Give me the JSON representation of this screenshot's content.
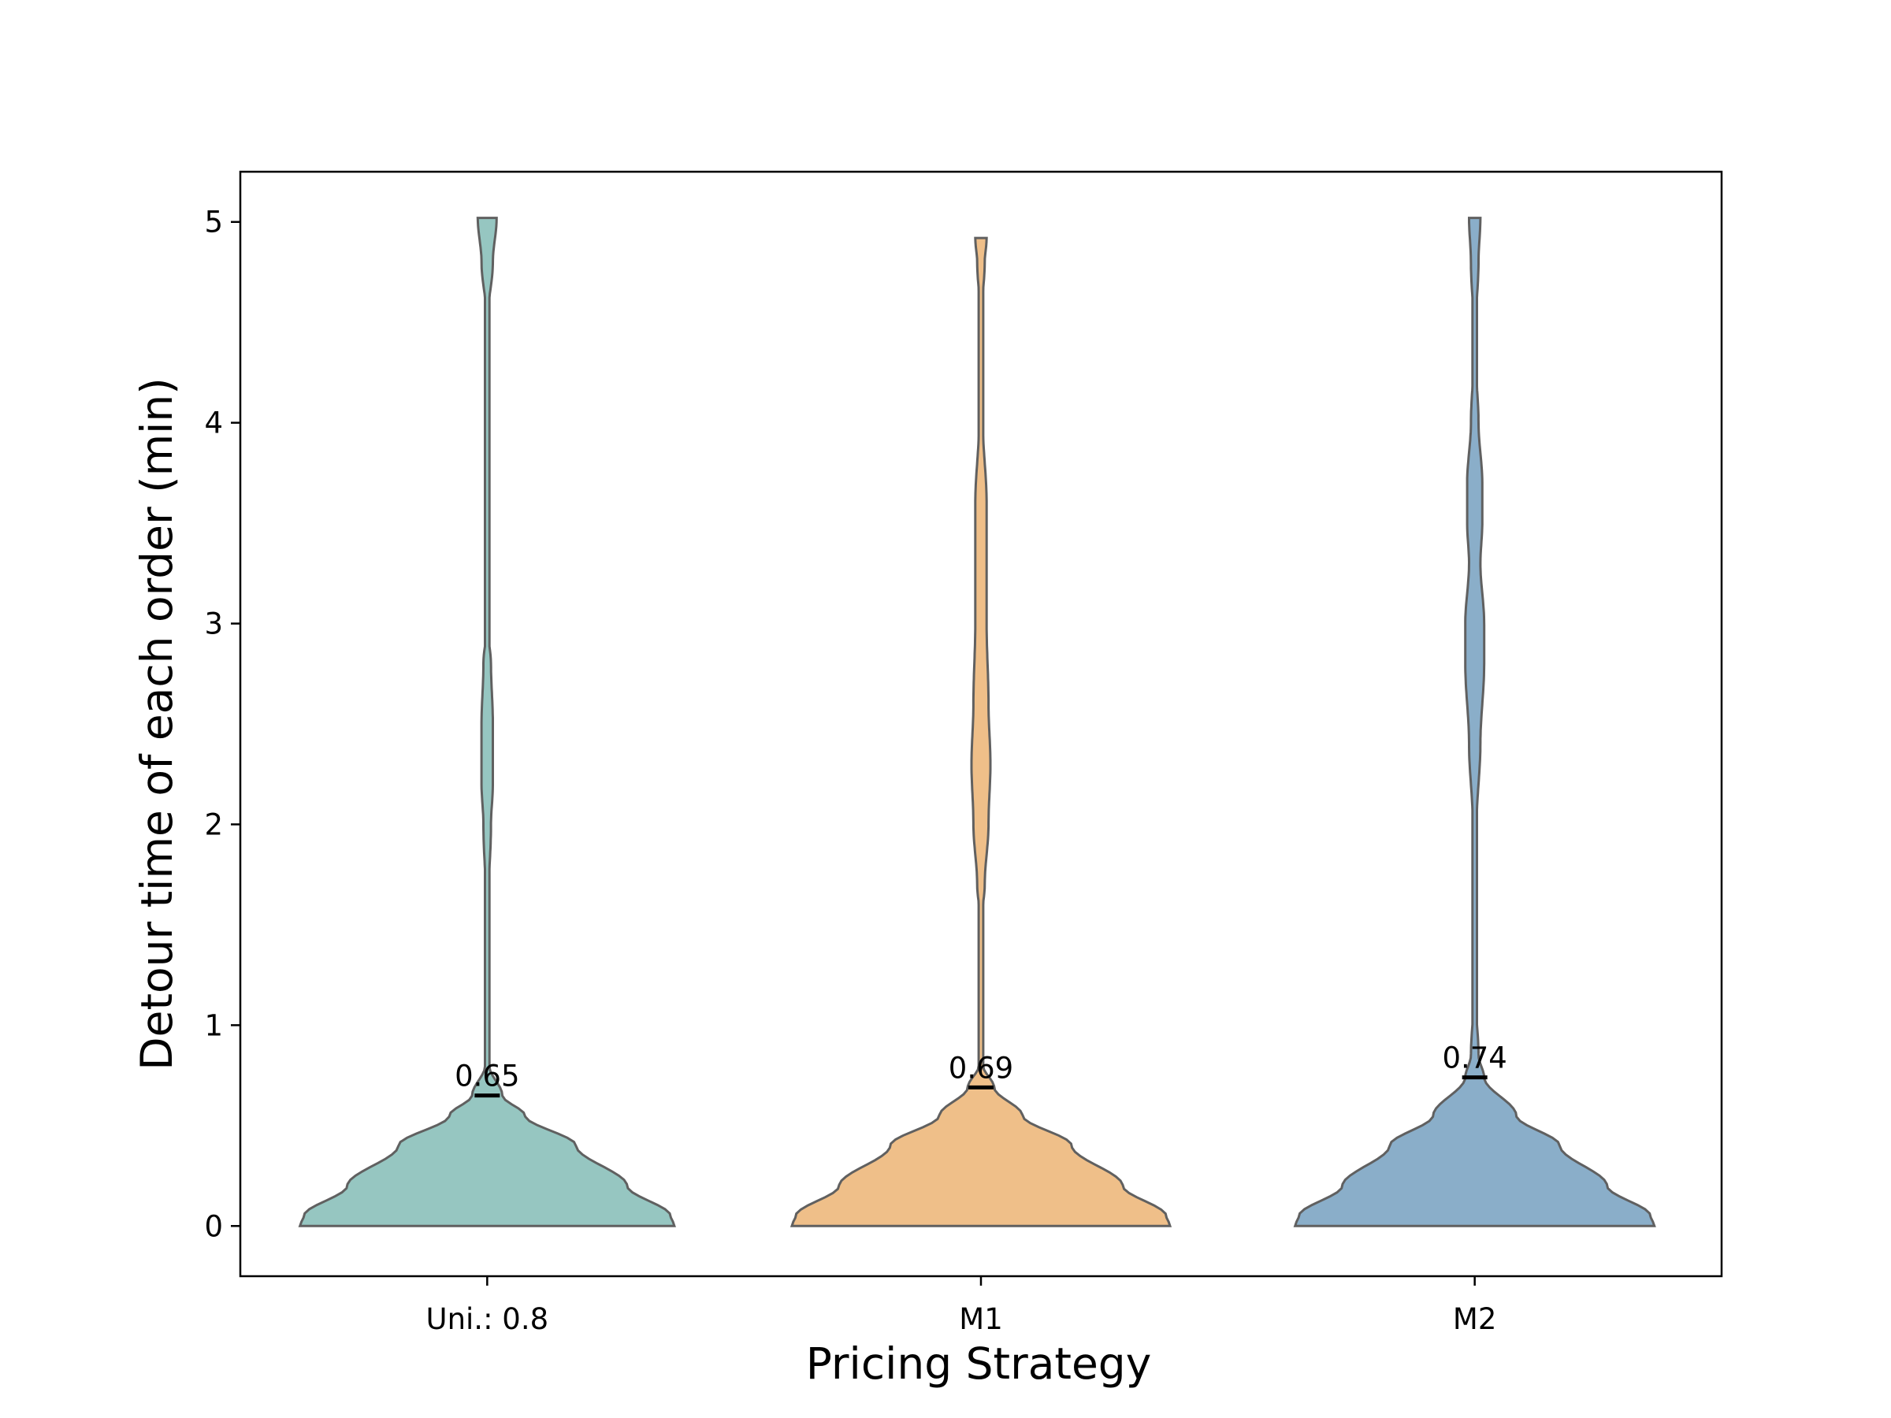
{
  "chart_data": {
    "type": "violin",
    "title": "",
    "xlabel": "Pricing Strategy",
    "ylabel": "Detour time of each order (min)",
    "ylim": [
      -0.25,
      5.25
    ],
    "yticks": [
      0,
      1,
      2,
      3,
      4,
      5
    ],
    "categories": [
      "Uni.: 0.8",
      "M1",
      "M2"
    ],
    "grid": false,
    "series": [
      {
        "category": "Uni.: 0.8",
        "color": "#96c6c1",
        "median": 0.65,
        "median_label": "0.65",
        "min": 0,
        "max": 5.02,
        "profile": [
          [
            0,
            0.99
          ],
          [
            0.05,
            0.97
          ],
          [
            0.2,
            0.74
          ],
          [
            0.4,
            0.47
          ],
          [
            0.55,
            0.2
          ],
          [
            0.65,
            0.08
          ],
          [
            0.8,
            0.01
          ],
          [
            1.0,
            0.0
          ],
          [
            1.5,
            0.0
          ],
          [
            2.0,
            0.02
          ],
          [
            2.2,
            0.03
          ],
          [
            2.5,
            0.03
          ],
          [
            2.8,
            0.02
          ],
          [
            3.0,
            0.0
          ],
          [
            3.5,
            0.0
          ],
          [
            4.0,
            0.0
          ],
          [
            4.5,
            0.0
          ],
          [
            4.8,
            0.03
          ],
          [
            5.02,
            0.05
          ]
        ]
      },
      {
        "category": "M1",
        "color": "#efbf89",
        "median": 0.69,
        "median_label": "0.69",
        "min": 0,
        "max": 4.92,
        "profile": [
          [
            0,
            1.0
          ],
          [
            0.05,
            0.98
          ],
          [
            0.2,
            0.75
          ],
          [
            0.4,
            0.48
          ],
          [
            0.55,
            0.22
          ],
          [
            0.69,
            0.07
          ],
          [
            0.8,
            0.01
          ],
          [
            1.0,
            0.0
          ],
          [
            1.5,
            0.0
          ],
          [
            1.7,
            0.02
          ],
          [
            2.0,
            0.04
          ],
          [
            2.3,
            0.05
          ],
          [
            2.6,
            0.04
          ],
          [
            3.0,
            0.03
          ],
          [
            3.3,
            0.03
          ],
          [
            3.6,
            0.03
          ],
          [
            4.0,
            0.01
          ],
          [
            4.5,
            0.0
          ],
          [
            4.8,
            0.02
          ],
          [
            4.92,
            0.03
          ]
        ]
      },
      {
        "category": "M2",
        "color": "#8aaec9",
        "median": 0.74,
        "median_label": "0.74",
        "min": 0,
        "max": 5.02,
        "profile": [
          [
            0,
            0.95
          ],
          [
            0.05,
            0.93
          ],
          [
            0.2,
            0.7
          ],
          [
            0.4,
            0.45
          ],
          [
            0.55,
            0.22
          ],
          [
            0.74,
            0.05
          ],
          [
            0.85,
            0.02
          ],
          [
            1.2,
            0.0
          ],
          [
            1.6,
            0.0
          ],
          [
            2.0,
            0.01
          ],
          [
            2.4,
            0.03
          ],
          [
            2.8,
            0.05
          ],
          [
            3.0,
            0.05
          ],
          [
            3.3,
            0.03
          ],
          [
            3.5,
            0.04
          ],
          [
            3.7,
            0.04
          ],
          [
            4.0,
            0.02
          ],
          [
            4.4,
            0.0
          ],
          [
            4.8,
            0.02
          ],
          [
            5.02,
            0.03
          ]
        ]
      }
    ]
  }
}
